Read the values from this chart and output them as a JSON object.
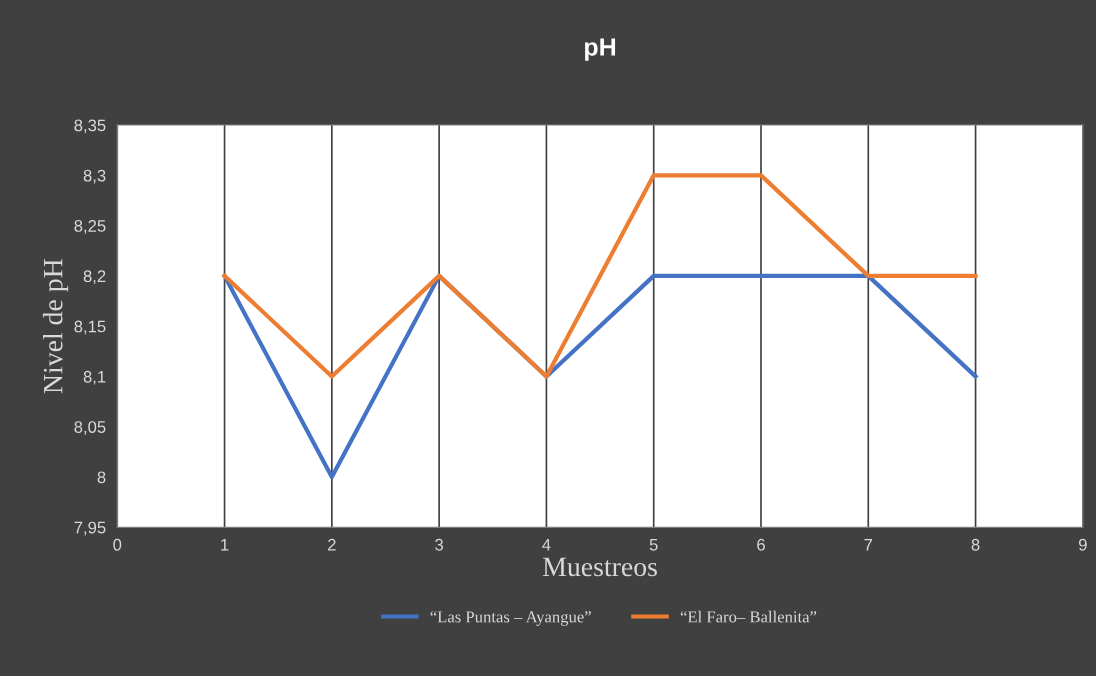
{
  "chart_data": {
    "type": "line",
    "title": "pH",
    "xlabel": "Muestreos",
    "ylabel": "Nivel de pH",
    "x": [
      1,
      2,
      3,
      4,
      5,
      6,
      7,
      8
    ],
    "series": [
      {
        "name": "“Las Puntas – Ayangue”",
        "color": "#4472c4",
        "values": [
          8.2,
          8.0,
          8.2,
          8.1,
          8.2,
          8.2,
          8.2,
          8.1
        ]
      },
      {
        "name": "“El Faro– Ballenita”",
        "color": "#ed7d31",
        "values": [
          8.2,
          8.1,
          8.2,
          8.1,
          8.3,
          8.3,
          8.2,
          8.2
        ]
      }
    ],
    "xlim": [
      0,
      9
    ],
    "xticks": [
      0,
      1,
      2,
      3,
      4,
      5,
      6,
      7,
      8,
      9
    ],
    "ylim": [
      7.95,
      8.35
    ],
    "yticks": [
      {
        "value": 7.95,
        "label": "7,95"
      },
      {
        "value": 8,
        "label": "8"
      },
      {
        "value": 8.05,
        "label": "8,05"
      },
      {
        "value": 8.1,
        "label": "8,1"
      },
      {
        "value": 8.15,
        "label": "8,15"
      },
      {
        "value": 8.2,
        "label": "8,2"
      },
      {
        "value": 8.25,
        "label": "8,25"
      },
      {
        "value": 8.3,
        "label": "8,3"
      },
      {
        "value": 8.35,
        "label": "8,35"
      }
    ],
    "grid": "x",
    "legend": "bottom",
    "marker": "none",
    "line_style": "solid"
  }
}
